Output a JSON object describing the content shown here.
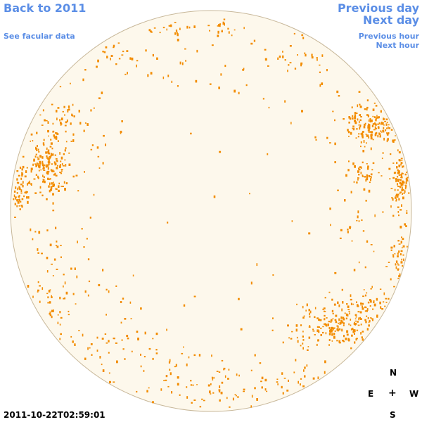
{
  "nav": {
    "back_label": "Back to 2011",
    "facular_label": "See facular data",
    "previous_day_label": "Previous day",
    "next_day_label": "Next day",
    "previous_hour_label": "Previous hour",
    "next_hour_label": "Next hour"
  },
  "compass": {
    "north": "N",
    "east": "E",
    "center": "+",
    "west": "W",
    "south": "S"
  },
  "timestamp": "2011-10-22T02:59:01",
  "colors": {
    "disk_fill": "#fdf8ec",
    "disk_outline": "#c8b89a",
    "facula": "#f28c00",
    "link": "#5b8ee6"
  }
}
